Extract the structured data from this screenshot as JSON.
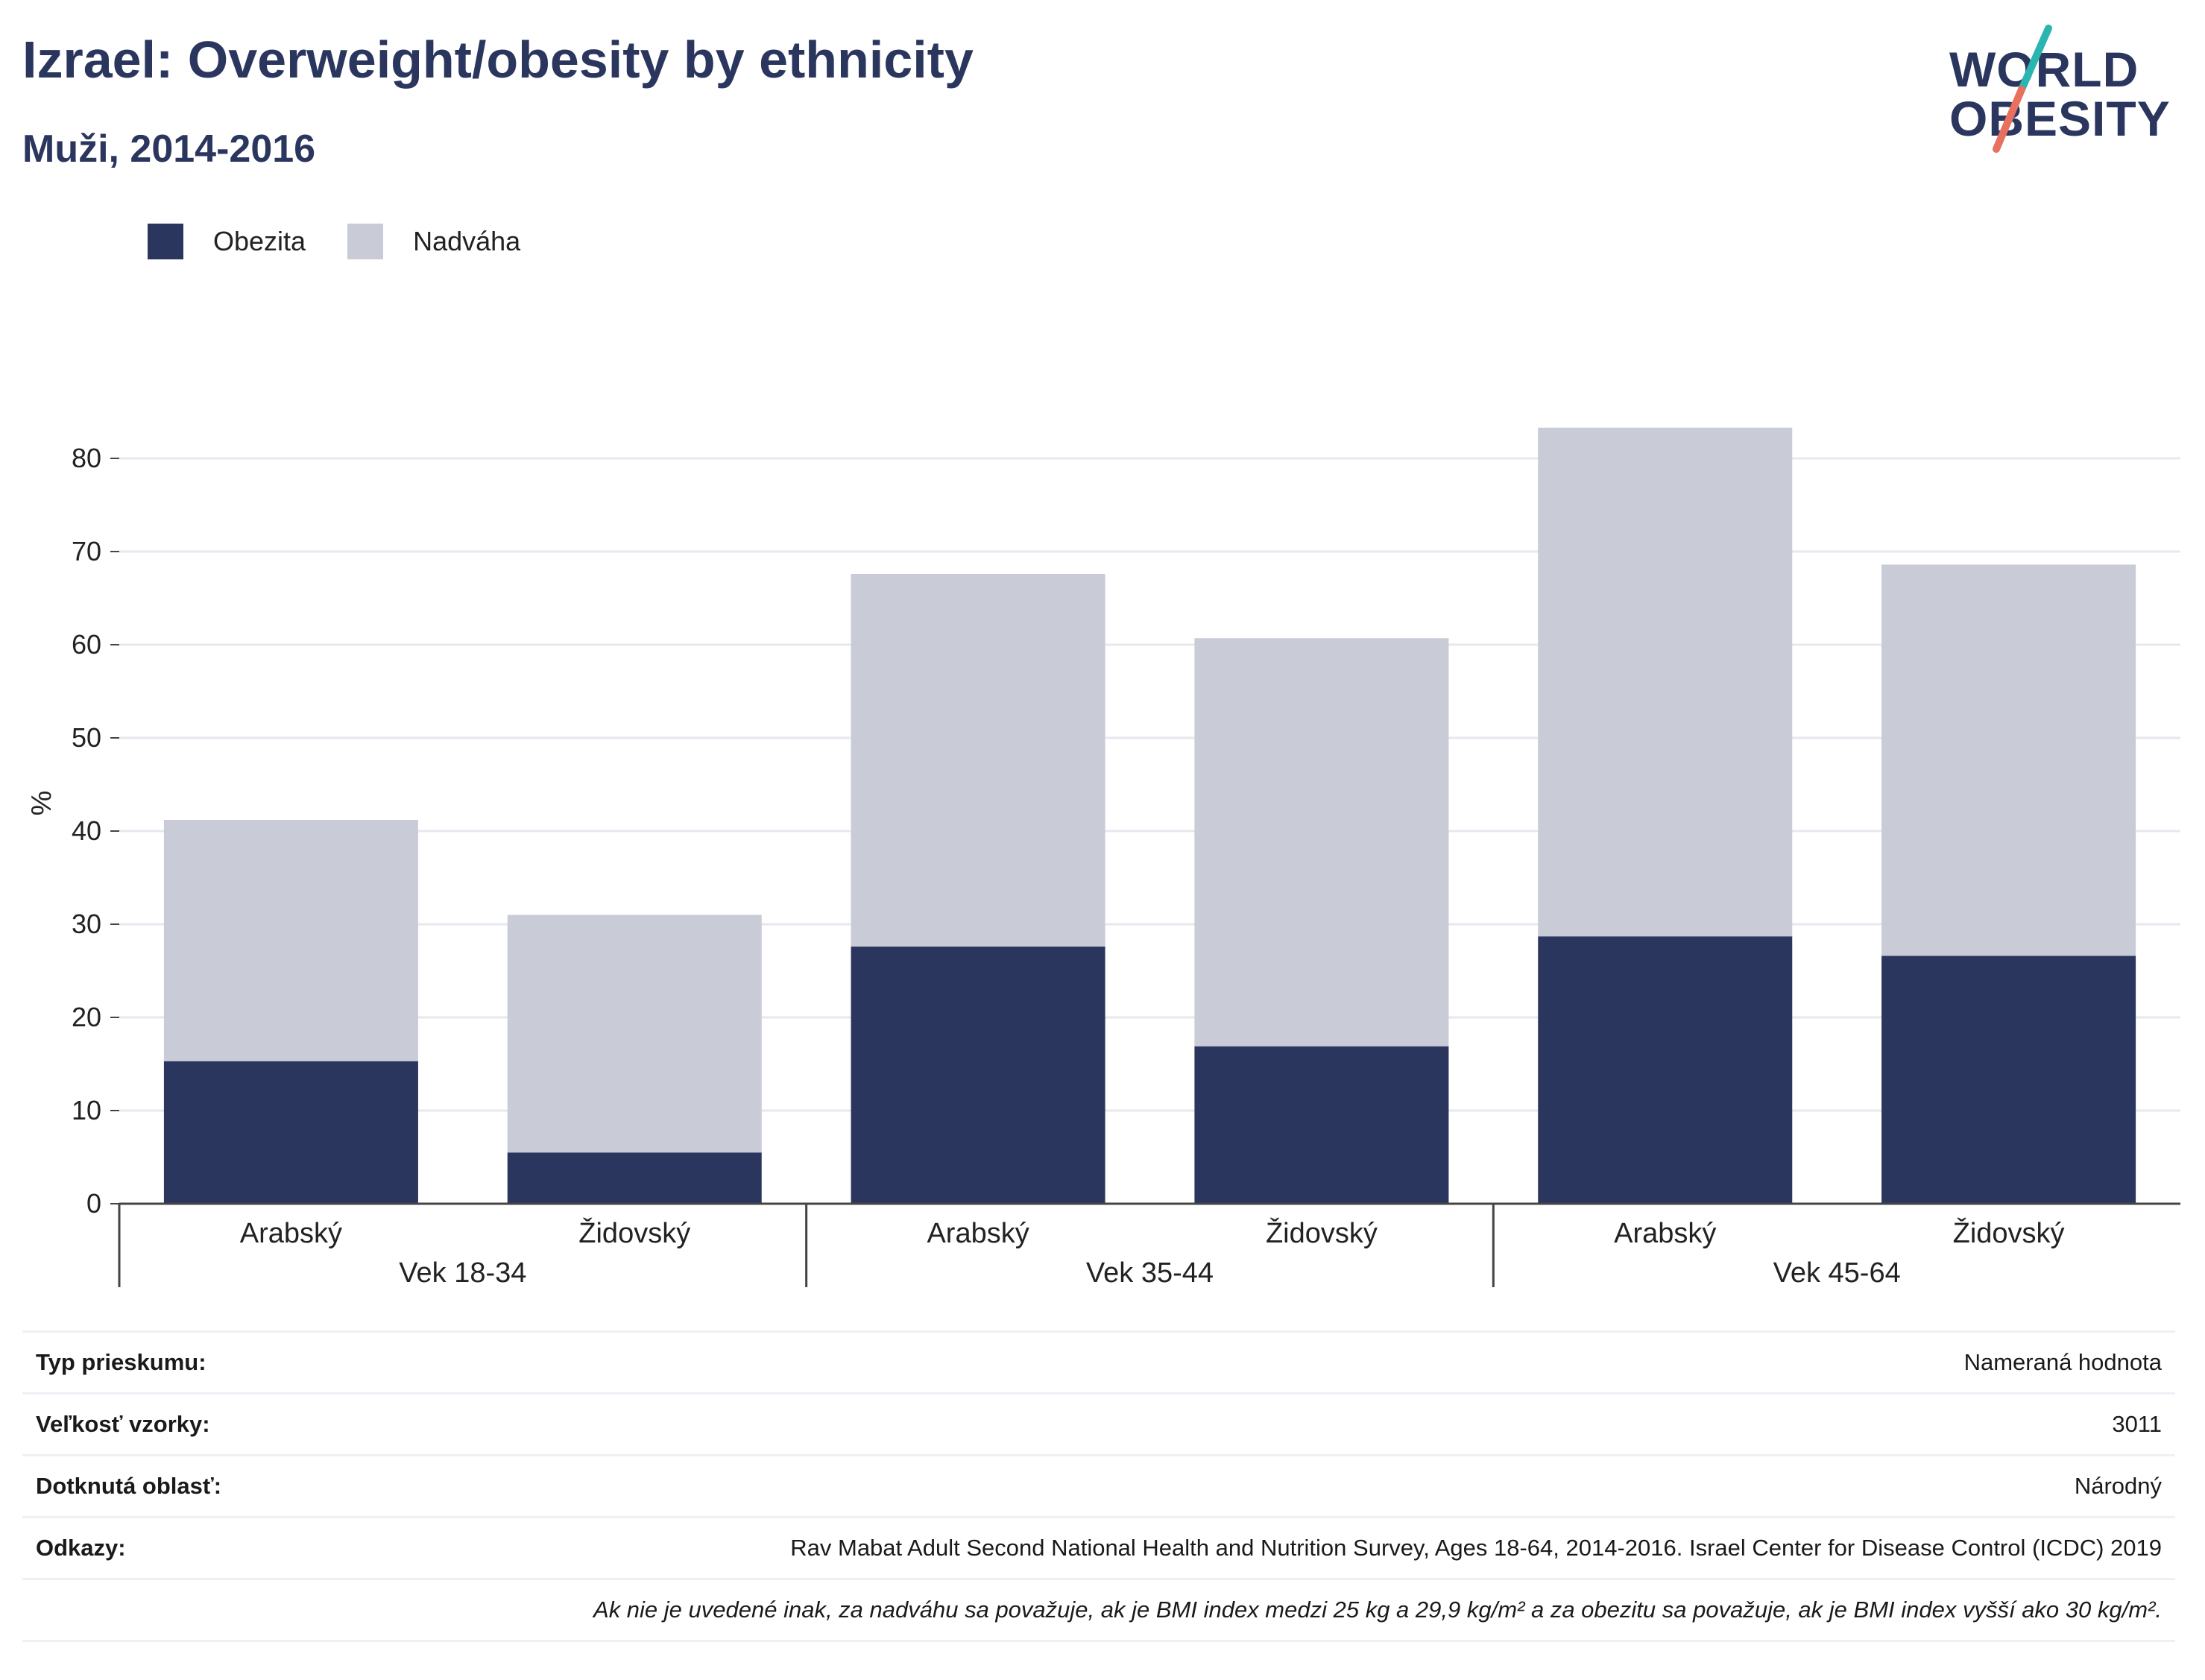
{
  "header": {
    "title": "Izrael: Overweight/obesity by ethnicity",
    "subtitle": "Muži, 2014-2016"
  },
  "logo": {
    "line1": "WORLD",
    "line2": "OBESITY",
    "accent_colors": [
      "#2bb5b0",
      "#e8705f"
    ]
  },
  "legend": [
    {
      "label": "Obezita",
      "color": "#2b365f"
    },
    {
      "label": "Nadváha",
      "color": "#c9cbd7"
    }
  ],
  "chart_data": {
    "type": "bar",
    "stacked": true,
    "ylabel": "%",
    "ylim": [
      0,
      86
    ],
    "yticks": [
      0,
      10,
      20,
      30,
      40,
      50,
      60,
      70,
      80
    ],
    "grid": true,
    "legend_position": "top-left",
    "categories": [
      "Arabský",
      "Židovský",
      "Arabský",
      "Židovský",
      "Arabský",
      "Židovský"
    ],
    "groups": [
      {
        "label": "Vek 18-34",
        "categories": [
          0,
          1
        ]
      },
      {
        "label": "Vek 35-44",
        "categories": [
          2,
          3
        ]
      },
      {
        "label": "Vek 45-64",
        "categories": [
          4,
          5
        ]
      }
    ],
    "series": [
      {
        "name": "Obezita",
        "color": "#2b365f",
        "values": [
          15.3,
          5.5,
          27.6,
          16.9,
          28.7,
          26.6
        ]
      },
      {
        "name": "Nadváha",
        "color": "#c9cbd7",
        "values": [
          25.9,
          25.5,
          40.0,
          43.8,
          54.6,
          42.0
        ]
      }
    ]
  },
  "info_table": {
    "rows": [
      {
        "label": "Typ prieskumu:",
        "value": "Nameraná hodnota"
      },
      {
        "label": "Veľkosť vzorky:",
        "value": "3011"
      },
      {
        "label": "Dotknutá oblasť:",
        "value": "Národný"
      },
      {
        "label": "Odkazy:",
        "value": "Rav Mabat Adult Second National Health and Nutrition Survey, Ages 18-64, 2014-2016. Israel Center for Disease Control (ICDC) 2019"
      }
    ],
    "note": "Ak nie je uvedené inak, za nadváhu sa považuje, ak je BMI index medzi 25 kg a 29,9 kg/m² a za obezitu sa považuje, ak je BMI index vyšší ako 30 kg/m²."
  }
}
